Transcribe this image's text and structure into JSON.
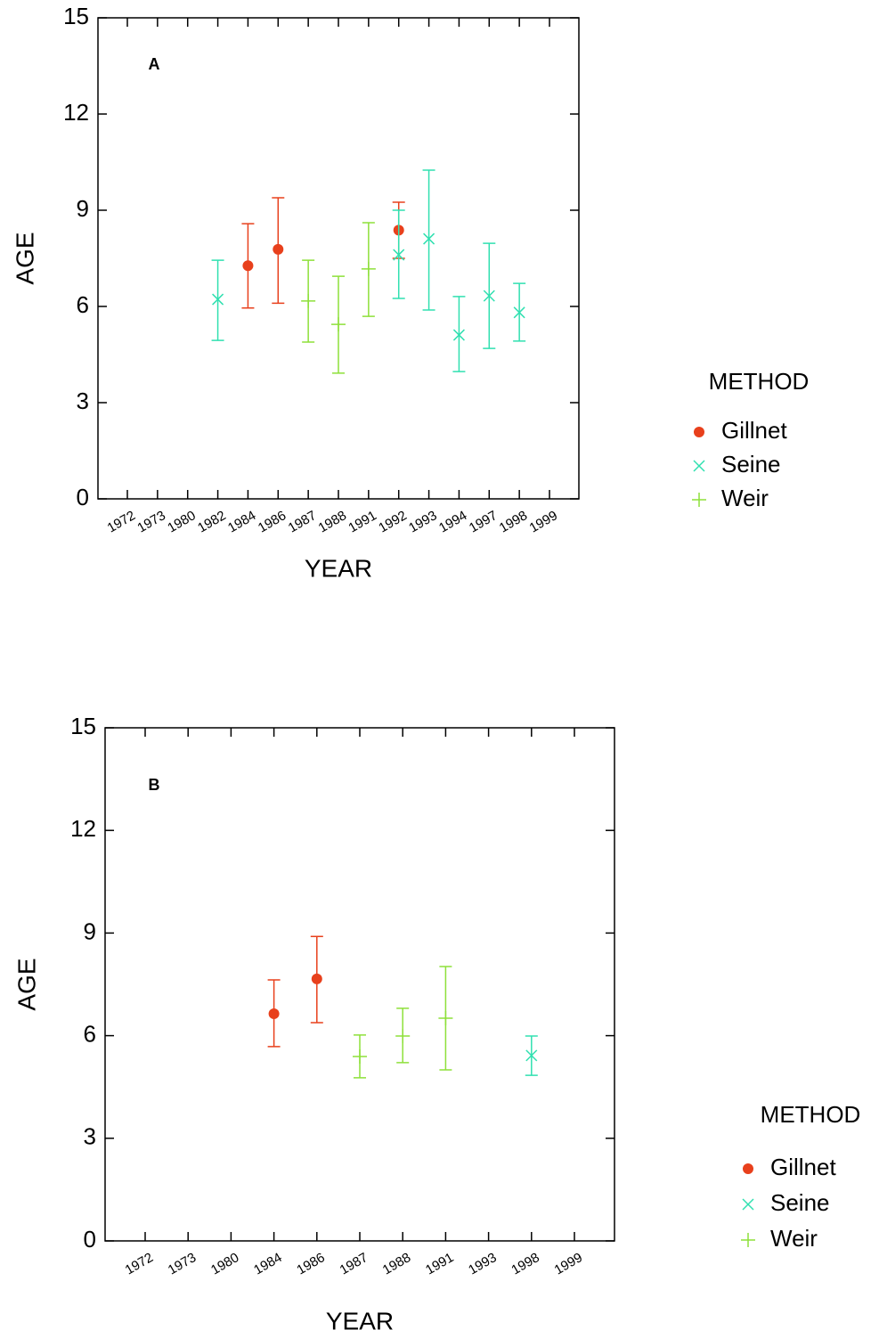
{
  "chart_data": [
    {
      "type": "errorbar",
      "annotation": "A",
      "x_label": "YEAR",
      "y_label": "AGE",
      "legend_title": "METHOD",
      "categories": [
        "1972",
        "1973",
        "1980",
        "1982",
        "1984",
        "1986",
        "1987",
        "1988",
        "1991",
        "1992",
        "1993",
        "1994",
        "1997",
        "1998",
        "1999"
      ],
      "ylim": [
        0,
        15
      ],
      "yticks": [
        0,
        3,
        6,
        9,
        12,
        15
      ],
      "series": [
        {
          "name": "Gillnet",
          "color": "#e8401c",
          "marker": "circle",
          "values": [
            null,
            null,
            null,
            null,
            7.27,
            7.78,
            null,
            null,
            null,
            8.38,
            null,
            null,
            null,
            null,
            null
          ],
          "lower": [
            null,
            null,
            null,
            null,
            5.95,
            6.1,
            null,
            null,
            null,
            7.5,
            null,
            null,
            null,
            null,
            null
          ],
          "upper": [
            null,
            null,
            null,
            null,
            8.58,
            9.39,
            null,
            null,
            null,
            9.25,
            null,
            null,
            null,
            null,
            null
          ]
        },
        {
          "name": "Seine",
          "color": "#30e0b0",
          "marker": "x",
          "values": [
            null,
            null,
            null,
            6.22,
            null,
            null,
            null,
            null,
            null,
            7.61,
            8.11,
            5.11,
            6.33,
            5.81,
            null
          ],
          "lower": [
            null,
            null,
            null,
            4.94,
            null,
            null,
            null,
            null,
            null,
            6.25,
            5.89,
            3.97,
            4.69,
            4.92,
            null
          ],
          "upper": [
            null,
            null,
            null,
            7.44,
            null,
            null,
            null,
            null,
            null,
            9.0,
            10.25,
            6.31,
            7.97,
            6.72,
            null
          ]
        },
        {
          "name": "Weir",
          "color": "#8ee03a",
          "marker": "plus",
          "values": [
            null,
            null,
            null,
            null,
            null,
            null,
            6.17,
            5.44,
            7.17,
            null,
            null,
            null,
            null,
            null,
            null
          ],
          "lower": [
            null,
            null,
            null,
            null,
            null,
            null,
            4.89,
            3.92,
            5.69,
            null,
            null,
            null,
            null,
            null,
            null
          ],
          "upper": [
            null,
            null,
            null,
            null,
            null,
            null,
            7.44,
            6.94,
            8.61,
            null,
            null,
            null,
            null,
            null,
            null
          ]
        }
      ]
    },
    {
      "type": "errorbar",
      "annotation": "B",
      "x_label": "YEAR",
      "y_label": "AGE",
      "legend_title": "METHOD",
      "categories": [
        "1972",
        "1973",
        "1980",
        "1984",
        "1986",
        "1987",
        "1988",
        "1991",
        "1993",
        "1998",
        "1999"
      ],
      "ylim": [
        0,
        15
      ],
      "yticks": [
        0,
        3,
        6,
        9,
        12,
        15
      ],
      "series": [
        {
          "name": "Gillnet",
          "color": "#e8401c",
          "marker": "circle",
          "values": [
            null,
            null,
            null,
            6.64,
            7.66,
            null,
            null,
            null,
            null,
            null,
            null
          ],
          "lower": [
            null,
            null,
            null,
            5.68,
            6.38,
            null,
            null,
            null,
            null,
            null,
            null
          ],
          "upper": [
            null,
            null,
            null,
            7.63,
            8.9,
            null,
            null,
            null,
            null,
            null,
            null
          ]
        },
        {
          "name": "Seine",
          "color": "#30e0b0",
          "marker": "x",
          "values": [
            null,
            null,
            null,
            null,
            null,
            null,
            null,
            null,
            null,
            5.42,
            null
          ],
          "lower": [
            null,
            null,
            null,
            null,
            null,
            null,
            null,
            null,
            null,
            4.84,
            null
          ],
          "upper": [
            null,
            null,
            null,
            null,
            null,
            null,
            null,
            null,
            null,
            5.99,
            null
          ]
        },
        {
          "name": "Weir",
          "color": "#8ee03a",
          "marker": "plus",
          "values": [
            null,
            null,
            null,
            null,
            null,
            5.39,
            5.99,
            6.51,
            null,
            null,
            null
          ],
          "lower": [
            null,
            null,
            null,
            null,
            null,
            4.77,
            5.21,
            5.0,
            null,
            null,
            null
          ],
          "upper": [
            null,
            null,
            null,
            null,
            null,
            6.02,
            6.8,
            8.02,
            null,
            null,
            null
          ]
        }
      ]
    }
  ]
}
